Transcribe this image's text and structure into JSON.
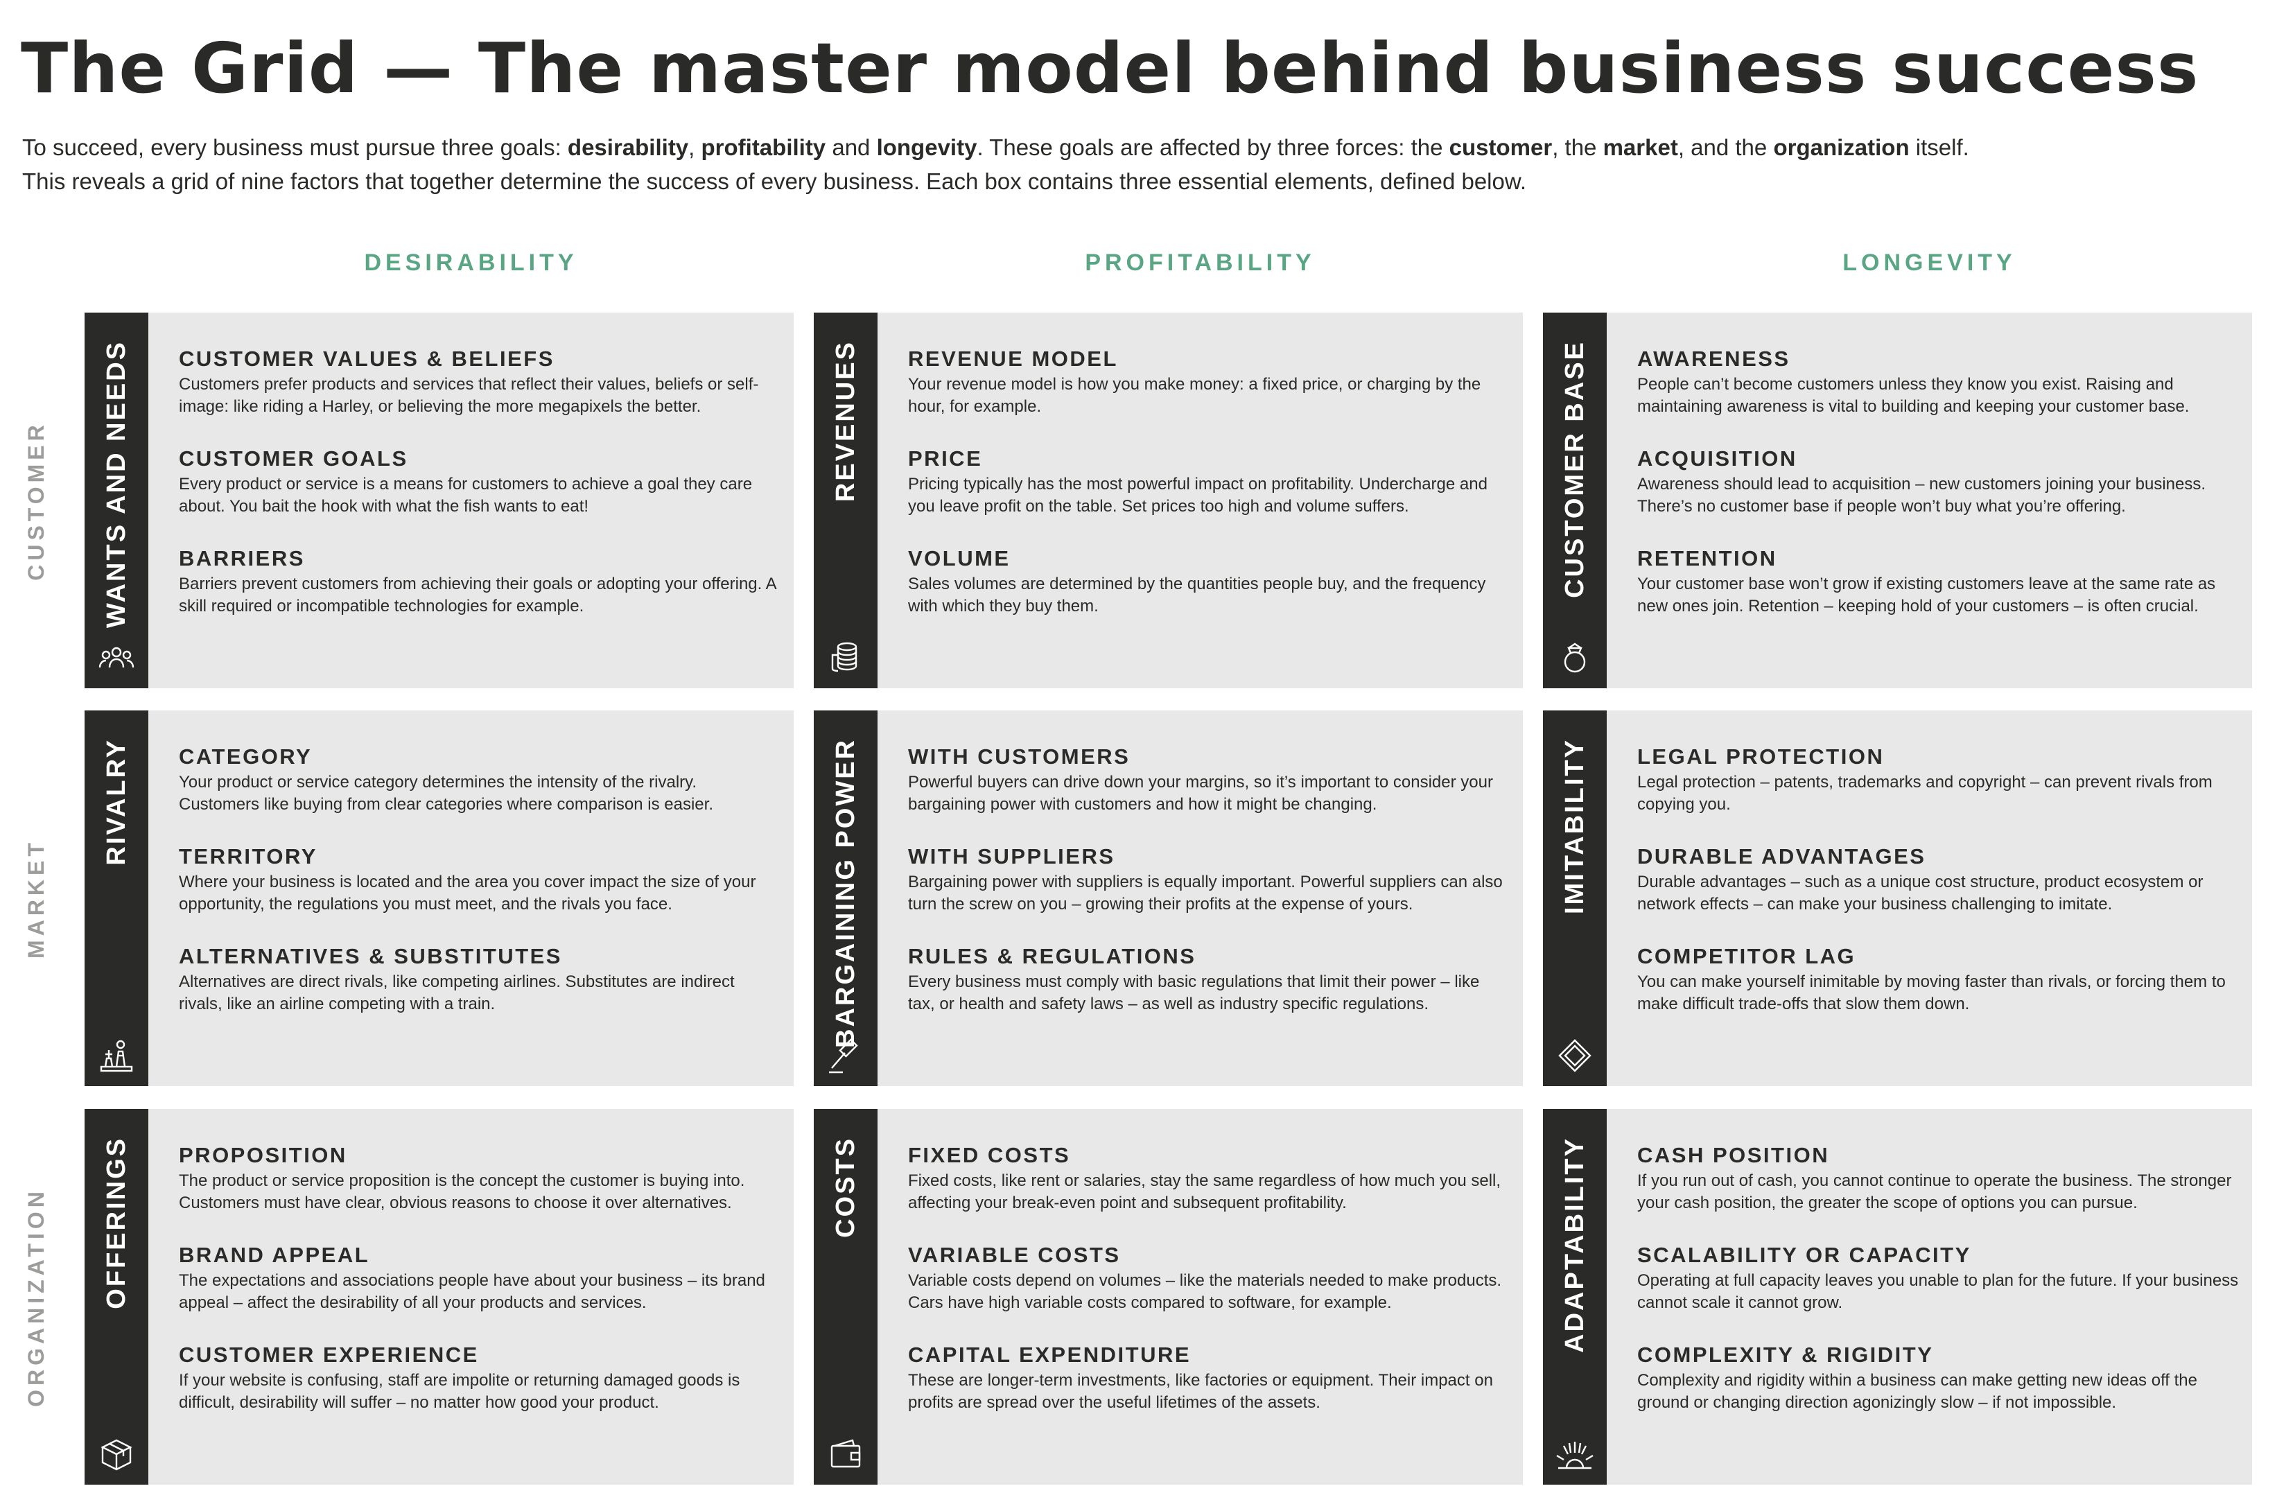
{
  "title": "The Grid — The master model behind business success",
  "intro": {
    "line1": [
      {
        "t": "To succeed, every business must pursue three goals: ",
        "b": false
      },
      {
        "t": "desirability",
        "b": true
      },
      {
        "t": ", ",
        "b": false
      },
      {
        "t": "profitability",
        "b": true
      },
      {
        "t": " and ",
        "b": false
      },
      {
        "t": "longevity",
        "b": true
      },
      {
        "t": ". These goals are affected by three forces: the ",
        "b": false
      },
      {
        "t": "customer",
        "b": true
      },
      {
        "t": ", the ",
        "b": false
      },
      {
        "t": "market",
        "b": true
      },
      {
        "t": ", and the ",
        "b": false
      },
      {
        "t": "organization",
        "b": true
      },
      {
        "t": " itself.",
        "b": false
      }
    ],
    "line2": "This reveals a grid of nine factors that together determine the success of every business. Each box contains three essential elements, defined below."
  },
  "columns": [
    "DESIRABILITY",
    "PROFITABILITY",
    "LONGEVITY"
  ],
  "rows": [
    "CUSTOMER",
    "MARKET",
    "ORGANIZATION"
  ],
  "cells": [
    [
      {
        "label": "WANTS AND NEEDS",
        "icon": "people-icon",
        "items": [
          {
            "title": "CUSTOMER VALUES & BELIEFS",
            "desc": "Customers prefer products and services that reflect their values, beliefs or self-image: like riding a Harley, or believing the more megapixels the better."
          },
          {
            "title": "CUSTOMER GOALS",
            "desc": "Every product or service is a means for customers to achieve a goal they care about. You bait the hook with what the fish wants to eat!"
          },
          {
            "title": "BARRIERS",
            "desc": "Barriers prevent customers from achieving their goals or adopting your offering. A skill required or incompatible technologies for example."
          }
        ]
      },
      {
        "label": "REVENUES",
        "icon": "coins-icon",
        "items": [
          {
            "title": "REVENUE MODEL",
            "desc": "Your revenue model is how you make money: a fixed price, or charging by the hour, for example."
          },
          {
            "title": "PRICE",
            "desc": "Pricing typically has the most powerful impact on profitability. Undercharge and you leave profit on the table. Set prices too high and volume suffers."
          },
          {
            "title": "VOLUME",
            "desc": "Sales volumes are determined by the quantities people buy, and the frequency with which they buy them."
          }
        ]
      },
      {
        "label": "CUSTOMER BASE",
        "icon": "ring-icon",
        "items": [
          {
            "title": "AWARENESS",
            "desc": "People can’t become customers unless they know you exist. Raising and maintaining awareness is vital to building and keeping your customer base."
          },
          {
            "title": "ACQUISITION",
            "desc": "Awareness should lead to acquisition – new customers joining your business. There’s no customer base if people won’t buy what you’re offering."
          },
          {
            "title": "RETENTION",
            "desc": "Your customer base won’t grow if existing customers leave at the same rate as new ones join. Retention – keeping hold of your customers – is often crucial."
          }
        ]
      }
    ],
    [
      {
        "label": "RIVALRY",
        "icon": "chess-icon",
        "items": [
          {
            "title": "CATEGORY",
            "desc": "Your product or service category determines the intensity of the rivalry. Customers like buying from clear categories where comparison is easier."
          },
          {
            "title": "TERRITORY",
            "desc": "Where your business is located and the area you cover impact the size of your opportunity, the regulations you must meet, and the rivals you face."
          },
          {
            "title": "ALTERNATIVES & SUBSTITUTES",
            "desc": "Alternatives are direct rivals, like competing airlines. Substitutes are indirect rivals, like an airline competing with a train."
          }
        ]
      },
      {
        "label": "BARGAINING POWER",
        "icon": "gavel-icon",
        "items": [
          {
            "title": "WITH CUSTOMERS",
            "desc": "Powerful buyers can drive down your margins, so it’s important to consider your bargaining power with customers and how it might be changing."
          },
          {
            "title": "WITH SUPPLIERS",
            "desc": "Bargaining power with suppliers is equally important. Powerful suppliers can also turn the screw on you – growing their profits at the expense of yours."
          },
          {
            "title": "RULES & REGULATIONS",
            "desc": "Every business must comply with basic regulations that limit their power – like tax, or health and safety laws – as well as industry specific regulations."
          }
        ]
      },
      {
        "label": "IMITABILITY",
        "icon": "diamond-icon",
        "items": [
          {
            "title": "LEGAL PROTECTION",
            "desc": "Legal protection – patents, trademarks and copyright – can prevent rivals from copying you."
          },
          {
            "title": "DURABLE ADVANTAGES",
            "desc": "Durable advantages – such as a unique cost structure, product ecosystem or network effects – can make your business challenging to imitate."
          },
          {
            "title": "COMPETITOR LAG",
            "desc": "You can make yourself inimitable by moving faster than rivals, or forcing them to make difficult trade-offs that slow them down."
          }
        ]
      }
    ],
    [
      {
        "label": "OFFERINGS",
        "icon": "box-icon",
        "items": [
          {
            "title": "PROPOSITION",
            "desc": "The product or service proposition is the concept the customer is buying into. Customers must have clear, obvious reasons to choose it over alternatives."
          },
          {
            "title": "BRAND APPEAL",
            "desc": "The expectations and associations people have about your business – its brand appeal – affect the desirability of all your products and services."
          },
          {
            "title": "CUSTOMER EXPERIENCE",
            "desc": "If your website is confusing, staff are impolite or returning damaged goods is difficult, desirability will suffer – no matter how good your product."
          }
        ]
      },
      {
        "label": "COSTS",
        "icon": "wallet-icon",
        "items": [
          {
            "title": "FIXED COSTS",
            "desc": "Fixed costs, like rent or salaries, stay the same regardless of how much you sell, affecting your break-even point and subsequent profitability."
          },
          {
            "title": "VARIABLE COSTS",
            "desc": "Variable costs depend on volumes – like the materials needed to make products. Cars have high variable costs compared to software, for example."
          },
          {
            "title": "CAPITAL EXPENDITURE",
            "desc": "These are longer-term investments, like factories or equipment. Their impact on profits are spread over the useful lifetimes of the assets."
          }
        ]
      },
      {
        "label": "ADAPTABILITY",
        "icon": "sunrise-icon",
        "items": [
          {
            "title": "CASH POSITION",
            "desc": "If you run out of cash, you cannot continue to operate the business. The stronger your cash position, the greater the scope of options you can pursue."
          },
          {
            "title": "SCALABILITY OR CAPACITY",
            "desc": "Operating at full capacity leaves you unable to plan for the future. If your business cannot scale it cannot grow."
          },
          {
            "title": "COMPLEXITY & RIGIDITY",
            "desc": "Complexity and rigidity within a business can make getting new ideas off the ground or changing direction agonizingly slow – if not impossible."
          }
        ]
      }
    ]
  ]
}
